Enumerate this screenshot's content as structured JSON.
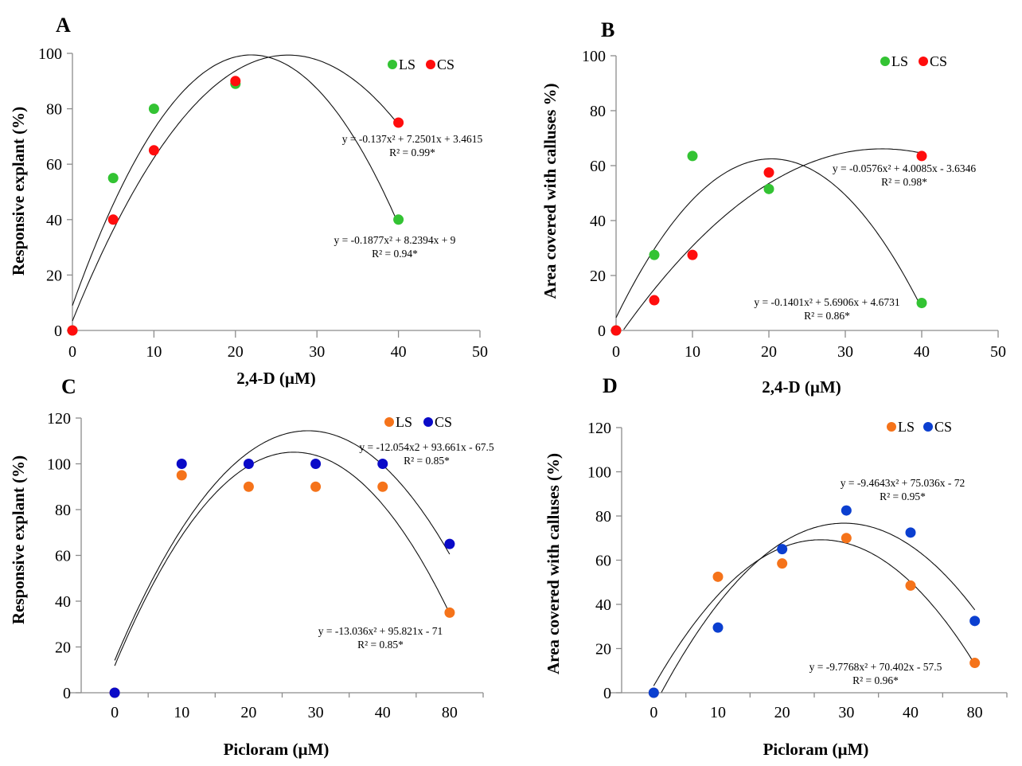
{
  "figure": {
    "panels": [
      "A",
      "B",
      "C",
      "D"
    ]
  },
  "colors": {
    "green": "#33c333",
    "red": "#ff0d0d",
    "orange": "#f5731a",
    "navy": "#0a0ac8",
    "blue": "#0b3fd0"
  },
  "chart_data": [
    {
      "id": "A",
      "type": "scatter",
      "title": "A",
      "xlabel": "2,4-D (µM)",
      "ylabel": "Responsive explant (%)",
      "xlim": [
        0,
        50
      ],
      "ylim": [
        0,
        100
      ],
      "xticks": [
        0,
        10,
        20,
        30,
        40,
        50
      ],
      "yticks": [
        0,
        20,
        40,
        60,
        80,
        100
      ],
      "x_categorical": false,
      "grid": false,
      "legend_position": "top-right",
      "series": [
        {
          "name": "LS",
          "color_key": "green",
          "x": [
            0,
            5,
            10,
            20,
            40
          ],
          "y": [
            0,
            55,
            80,
            89,
            40
          ],
          "trend": {
            "coef": [
              -0.1877,
              8.2394,
              9
            ],
            "equation": "y = -0.1877x² + 8.2394x + 9",
            "r2": "R² = 0.94*"
          }
        },
        {
          "name": "CS",
          "color_key": "red",
          "x": [
            0,
            5,
            10,
            20,
            40
          ],
          "y": [
            0,
            40,
            65,
            90,
            75
          ],
          "trend": {
            "coef": [
              -0.137,
              7.2501,
              3.4615
            ],
            "equation": "y = -0.137x² + 7.2501x + 3.4615",
            "r2": "R² = 0.99*"
          }
        }
      ]
    },
    {
      "id": "B",
      "type": "scatter",
      "title": "B",
      "xlabel": "2,4-D (µM)",
      "ylabel": "Area covered  with calluses  %)",
      "xlim": [
        0,
        50
      ],
      "ylim": [
        0,
        100
      ],
      "xticks": [
        0,
        10,
        20,
        30,
        40,
        50
      ],
      "yticks": [
        0,
        20,
        40,
        60,
        80,
        100
      ],
      "x_categorical": false,
      "grid": false,
      "legend_position": "top-right",
      "series": [
        {
          "name": "LS",
          "color_key": "green",
          "x": [
            0,
            5,
            10,
            20,
            40
          ],
          "y": [
            0,
            27.5,
            63.5,
            51.5,
            10
          ],
          "trend": {
            "coef": [
              -0.1401,
              5.6906,
              4.6731
            ],
            "equation": "y = -0.1401x² + 5.6906x + 4.6731",
            "r2": "R² = 0.86*"
          }
        },
        {
          "name": "CS",
          "color_key": "red",
          "x": [
            0,
            5,
            10,
            20,
            40
          ],
          "y": [
            0,
            11,
            27.5,
            57.5,
            63.5
          ],
          "trend": {
            "coef": [
              -0.0576,
              4.0085,
              -3.6346
            ],
            "equation": "y = -0.0576x² + 4.0085x - 3.6346",
            "r2": "R² = 0.98*"
          }
        }
      ]
    },
    {
      "id": "C",
      "type": "scatter",
      "title": "C",
      "xlabel": "Picloram (µM)",
      "ylabel": "Responsive explant (%)",
      "categories": [
        "0",
        "10",
        "20",
        "30",
        "40",
        "80"
      ],
      "ylim": [
        0,
        120
      ],
      "yticks": [
        0,
        20,
        40,
        60,
        80,
        100,
        120
      ],
      "x_categorical": true,
      "grid": false,
      "legend_position": "top-right",
      "series": [
        {
          "name": "LS",
          "color_key": "orange",
          "y": [
            0,
            95,
            90,
            90,
            90,
            35
          ],
          "trend": {
            "coef": [
              -13.036,
              95.821,
              -71
            ],
            "equation": "y = -13.036x² + 95.821x - 71",
            "r2": "R² = 0.85*"
          }
        },
        {
          "name": "CS",
          "color_key": "navy",
          "y": [
            0,
            100,
            100,
            100,
            100,
            65
          ],
          "trend": {
            "coef": [
              -12.054,
              93.661,
              -67.5
            ],
            "equation": "y = -12.054x2 + 93.661x - 67.5",
            "r2": "R² = 0.85*"
          }
        }
      ]
    },
    {
      "id": "D",
      "type": "scatter",
      "title": "D",
      "xlabel": "Picloram (µM)",
      "ylabel": "Area covered  with calluses  (%)",
      "categories": [
        "0",
        "10",
        "20",
        "30",
        "40",
        "80"
      ],
      "ylim": [
        0,
        120
      ],
      "yticks": [
        0,
        20,
        40,
        60,
        80,
        100,
        120
      ],
      "x_categorical": true,
      "grid": false,
      "legend_position": "top-right",
      "series": [
        {
          "name": "LS",
          "color_key": "orange",
          "y": [
            0,
            52.5,
            58.5,
            70,
            48.5,
            13.5
          ],
          "trend": {
            "coef": [
              -9.7768,
              70.402,
              -57.5
            ],
            "equation": "y = -9.7768x² + 70.402x - 57.5",
            "r2": "R² = 0.96*"
          }
        },
        {
          "name": "CS",
          "color_key": "blue",
          "y": [
            0,
            29.5,
            65,
            82.5,
            72.5,
            32.5
          ],
          "trend": {
            "coef": [
              -9.4643,
              75.036,
              -72
            ],
            "equation": "y = -9.4643x² + 75.036x - 72",
            "r2": "R² = 0.95*"
          }
        }
      ]
    }
  ]
}
